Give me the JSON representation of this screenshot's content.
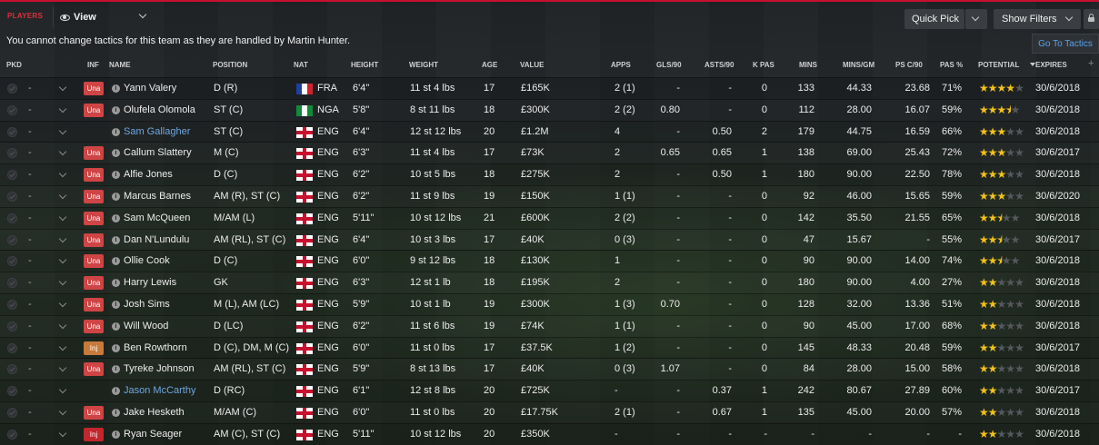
{
  "toolbar": {
    "section_label": "PLAYERS",
    "view_label": "View",
    "quick_pick_label": "Quick Pick",
    "show_filters_label": "Show Filters"
  },
  "notice": "You cannot change tactics for this team as they are handled by Martin Hunter.",
  "goto_tactics_label": "Go To Tactics",
  "headers": {
    "pkd": "PKD",
    "inf": "INF",
    "name": "NAME",
    "position": "POSITION",
    "nat": "NAT",
    "height": "HEIGHT",
    "weight": "WEIGHT",
    "age": "AGE",
    "value": "VALUE",
    "apps": "APPS",
    "gls90": "GLS/90",
    "asts90": "ASTS/90",
    "kpas": "K PAS",
    "mins": "MINS",
    "minsgm": "MINS/GM",
    "psc90": "PS C/90",
    "pasp": "PAS %",
    "potential": "POTENTIAL",
    "expires": "EXPIRES"
  },
  "colors": {
    "accent": "#c8102e",
    "link": "#5aa0e8",
    "star": "#f2c21a",
    "una_badge": "#cf4444"
  },
  "players": [
    {
      "pkd": "-",
      "inf": "Una",
      "name": "Yann Valery",
      "position": "D (R)",
      "nat": "FRA",
      "flag": "fra",
      "height": "6'4\"",
      "weight": "11 st 4 lbs",
      "age": "17",
      "value": "£165K",
      "apps": "2 (1)",
      "gls90": "-",
      "asts90": "-",
      "kpas": "0",
      "mins": "133",
      "minsgm": "44.33",
      "psc90": "23.68",
      "pasp": "71%",
      "potential": 4,
      "expires": "30/6/2018"
    },
    {
      "pkd": "-",
      "inf": "Una",
      "name": "Olufela Olomola",
      "position": "ST (C)",
      "nat": "NGA",
      "flag": "nga",
      "height": "5'8\"",
      "weight": "8 st 11 lbs",
      "age": "18",
      "value": "£300K",
      "apps": "2 (2)",
      "gls90": "0.80",
      "asts90": "-",
      "kpas": "0",
      "mins": "112",
      "minsgm": "28.00",
      "psc90": "16.07",
      "pasp": "59%",
      "potential": 3.5,
      "expires": "30/6/2018"
    },
    {
      "pkd": "-",
      "inf": "",
      "name": "Sam Gallagher",
      "position": "ST (C)",
      "nat": "ENG",
      "flag": "eng",
      "height": "6'4\"",
      "weight": "12 st 12 lbs",
      "age": "20",
      "value": "£1.2M",
      "apps": "4",
      "gls90": "-",
      "asts90": "0.50",
      "kpas": "2",
      "mins": "179",
      "minsgm": "44.75",
      "psc90": "16.59",
      "pasp": "66%",
      "potential": 3,
      "expires": "30/6/2018"
    },
    {
      "pkd": "-",
      "inf": "Una",
      "name": "Callum Slattery",
      "position": "M (C)",
      "nat": "ENG",
      "flag": "eng",
      "height": "6'3\"",
      "weight": "11 st 4 lbs",
      "age": "17",
      "value": "£73K",
      "apps": "2",
      "gls90": "0.65",
      "asts90": "0.65",
      "kpas": "1",
      "mins": "138",
      "minsgm": "69.00",
      "psc90": "25.43",
      "pasp": "72%",
      "potential": 3,
      "expires": "30/6/2017"
    },
    {
      "pkd": "-",
      "inf": "Una",
      "name": "Alfie Jones",
      "position": "D (C)",
      "nat": "ENG",
      "flag": "eng",
      "height": "6'2\"",
      "weight": "10 st 5 lbs",
      "age": "18",
      "value": "£275K",
      "apps": "2",
      "gls90": "-",
      "asts90": "0.50",
      "kpas": "1",
      "mins": "180",
      "minsgm": "90.00",
      "psc90": "22.50",
      "pasp": "78%",
      "potential": 3,
      "expires": "30/6/2018"
    },
    {
      "pkd": "-",
      "inf": "Una",
      "name": "Marcus Barnes",
      "position": "AM (R), ST (C)",
      "nat": "ENG",
      "flag": "eng",
      "height": "6'2\"",
      "weight": "11 st 9 lbs",
      "age": "19",
      "value": "£150K",
      "apps": "1 (1)",
      "gls90": "-",
      "asts90": "-",
      "kpas": "0",
      "mins": "92",
      "minsgm": "46.00",
      "psc90": "15.65",
      "pasp": "59%",
      "potential": 3,
      "expires": "30/6/2020"
    },
    {
      "pkd": "-",
      "inf": "Una",
      "name": "Sam McQueen",
      "position": "M/AM (L)",
      "nat": "ENG",
      "flag": "eng",
      "height": "5'11\"",
      "weight": "10 st 12 lbs",
      "age": "21",
      "value": "£600K",
      "apps": "2 (2)",
      "gls90": "-",
      "asts90": "-",
      "kpas": "0",
      "mins": "142",
      "minsgm": "35.50",
      "psc90": "21.55",
      "pasp": "65%",
      "potential": 2.5,
      "expires": "30/6/2018"
    },
    {
      "pkd": "-",
      "inf": "Una",
      "name": "Dan N'Lundulu",
      "position": "AM (RL), ST (C)",
      "nat": "ENG",
      "flag": "eng",
      "height": "6'4\"",
      "weight": "10 st 3 lbs",
      "age": "17",
      "value": "£40K",
      "apps": "0 (3)",
      "gls90": "-",
      "asts90": "-",
      "kpas": "0",
      "mins": "47",
      "minsgm": "15.67",
      "psc90": "-",
      "pasp": "55%",
      "potential": 2.5,
      "expires": "30/6/2017"
    },
    {
      "pkd": "-",
      "inf": "Una",
      "name": "Ollie Cook",
      "position": "D (C)",
      "nat": "ENG",
      "flag": "eng",
      "height": "6'0\"",
      "weight": "9 st 12 lbs",
      "age": "18",
      "value": "£130K",
      "apps": "1",
      "gls90": "-",
      "asts90": "-",
      "kpas": "0",
      "mins": "90",
      "minsgm": "90.00",
      "psc90": "14.00",
      "pasp": "74%",
      "potential": 2.5,
      "expires": "30/6/2018"
    },
    {
      "pkd": "-",
      "inf": "Una",
      "name": "Harry Lewis",
      "position": "GK",
      "nat": "ENG",
      "flag": "eng",
      "height": "6'3\"",
      "weight": "12 st 1 lb",
      "age": "18",
      "value": "£195K",
      "apps": "2",
      "gls90": "-",
      "asts90": "-",
      "kpas": "0",
      "mins": "180",
      "minsgm": "90.00",
      "psc90": "4.00",
      "pasp": "27%",
      "potential": 2,
      "expires": "30/6/2018"
    },
    {
      "pkd": "-",
      "inf": "Una",
      "name": "Josh Sims",
      "position": "M (L), AM (LC)",
      "nat": "ENG",
      "flag": "eng",
      "height": "5'9\"",
      "weight": "10 st 1 lb",
      "age": "19",
      "value": "£300K",
      "apps": "1 (3)",
      "gls90": "0.70",
      "asts90": "-",
      "kpas": "0",
      "mins": "128",
      "minsgm": "32.00",
      "psc90": "13.36",
      "pasp": "51%",
      "potential": 2,
      "expires": "30/6/2018"
    },
    {
      "pkd": "-",
      "inf": "Una",
      "name": "Will Wood",
      "position": "D (LC)",
      "nat": "ENG",
      "flag": "eng",
      "height": "6'2\"",
      "weight": "11 st 6 lbs",
      "age": "19",
      "value": "£74K",
      "apps": "1 (1)",
      "gls90": "-",
      "asts90": "-",
      "kpas": "0",
      "mins": "90",
      "minsgm": "45.00",
      "psc90": "17.00",
      "pasp": "68%",
      "potential": 2,
      "expires": "30/6/2018"
    },
    {
      "pkd": "-",
      "inf": "Inj",
      "name": "Ben Rowthorn",
      "position": "D (C), DM, M (C)",
      "nat": "ENG",
      "flag": "eng",
      "height": "6'0\"",
      "weight": "11 st 0 lbs",
      "age": "17",
      "value": "£37.5K",
      "apps": "1 (2)",
      "gls90": "-",
      "asts90": "-",
      "kpas": "0",
      "mins": "145",
      "minsgm": "48.33",
      "psc90": "20.48",
      "pasp": "59%",
      "potential": 2,
      "expires": "30/6/2017"
    },
    {
      "pkd": "-",
      "inf": "Una",
      "name": "Tyreke Johnson",
      "position": "AM (RL), ST (C)",
      "nat": "ENG",
      "flag": "eng",
      "height": "5'9\"",
      "weight": "8 st 13 lbs",
      "age": "17",
      "value": "£40K",
      "apps": "0 (3)",
      "gls90": "1.07",
      "asts90": "-",
      "kpas": "0",
      "mins": "84",
      "minsgm": "28.00",
      "psc90": "15.00",
      "pasp": "58%",
      "potential": 2,
      "expires": "30/6/2018"
    },
    {
      "pkd": "-",
      "inf": "",
      "name": "Jason McCarthy",
      "position": "D (RC)",
      "nat": "ENG",
      "flag": "eng",
      "height": "6'1\"",
      "weight": "12 st 8 lbs",
      "age": "20",
      "value": "£725K",
      "apps": "-",
      "gls90": "-",
      "asts90": "0.37",
      "kpas": "1",
      "mins": "242",
      "minsgm": "80.67",
      "psc90": "27.89",
      "pasp": "60%",
      "potential": 2,
      "expires": "30/6/2017"
    },
    {
      "pkd": "-",
      "inf": "Una",
      "name": "Jake Hesketh",
      "position": "M/AM (C)",
      "nat": "ENG",
      "flag": "eng",
      "height": "6'0\"",
      "weight": "11 st 0 lbs",
      "age": "20",
      "value": "£17.75K",
      "apps": "2 (1)",
      "gls90": "-",
      "asts90": "0.67",
      "kpas": "1",
      "mins": "135",
      "minsgm": "45.00",
      "psc90": "20.00",
      "pasp": "57%",
      "potential": 2,
      "expires": "30/6/2018"
    },
    {
      "pkd": "-",
      "inf": "Inj",
      "name": "Ryan Seager",
      "position": "AM (C), ST (C)",
      "nat": "ENG",
      "flag": "eng",
      "height": "5'11\"",
      "weight": "10 st 12 lbs",
      "age": "20",
      "value": "£350K",
      "apps": "-",
      "gls90": "-",
      "asts90": "-",
      "kpas": "-",
      "mins": "-",
      "minsgm": "-",
      "psc90": "-",
      "pasp": "-",
      "potential": 2,
      "expires": "30/6/2018"
    }
  ]
}
